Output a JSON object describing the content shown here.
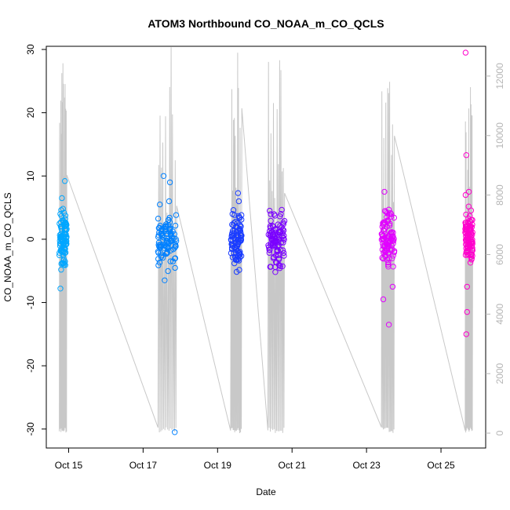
{
  "chart_data": {
    "type": "scatter",
    "title": "ATOM3 Northbound CO_NOAA_m_CO_QCLS",
    "xlabel": "Date",
    "ylabel": "CO_NOAA_m_CO_QCLS",
    "x_tick_labels": [
      "Oct 15",
      "Oct 17",
      "Oct 19",
      "Oct 21",
      "Oct 23",
      "Oct 25"
    ],
    "x_tick_days": [
      15,
      17,
      19,
      21,
      23,
      25
    ],
    "xlim_days": [
      14.4,
      26.2
    ],
    "ylim": [
      -33,
      30.5
    ],
    "y_ticks": [
      -30,
      -20,
      -10,
      0,
      10,
      20,
      30
    ],
    "y2_label_ticks": [
      0,
      2000,
      4000,
      6000,
      8000,
      10000,
      12000
    ],
    "y2lim": [
      -500,
      13000
    ],
    "y2_color": "#b5b5b5",
    "grid": false,
    "point_style": "open-circle",
    "point_colors": [
      "#00a6ff",
      "#0080ff",
      "#1a3cff",
      "#3a00ff",
      "#7a00ff",
      "#e100ff",
      "#ff00cc"
    ],
    "secondary_line": {
      "name": "",
      "color": "#c8c8c8",
      "note_units": "right axis units"
    },
    "flights": [
      {
        "x_range_days": [
          14.75,
          14.95
        ],
        "point_color": "#00a6ff",
        "series": [
          {
            "x": 14.78,
            "y": -7.8
          },
          {
            "x": 14.8,
            "y": 4.6
          },
          {
            "x": 14.82,
            "y": 6.5
          },
          {
            "x": 14.85,
            "y": -3.8
          },
          {
            "x": 14.9,
            "y": 9.2
          },
          {
            "x": 14.88,
            "y": -4.0
          },
          {
            "x": 14.79,
            "y": 2.0
          },
          {
            "x": 14.82,
            "y": 0.5
          },
          {
            "x": 14.86,
            "y": -1.0
          },
          {
            "x": 14.91,
            "y": 1.5
          },
          {
            "x": 14.84,
            "y": 3.0
          },
          {
            "x": 14.87,
            "y": -2.0
          },
          {
            "x": 14.8,
            "y": 0.0
          },
          {
            "x": 14.83,
            "y": -0.5
          },
          {
            "x": 14.89,
            "y": 2.5
          }
        ]
      },
      {
        "x_range_days": [
          17.4,
          17.9
        ],
        "point_color": "#0080ff",
        "series": [
          {
            "x": 17.55,
            "y": 10.0
          },
          {
            "x": 17.72,
            "y": 9.0
          },
          {
            "x": 17.58,
            "y": -6.5
          },
          {
            "x": 17.85,
            "y": -30.5
          },
          {
            "x": 17.45,
            "y": 5.5
          },
          {
            "x": 17.7,
            "y": 6.0
          },
          {
            "x": 17.6,
            "y": 2.0
          },
          {
            "x": 17.65,
            "y": -2.0
          },
          {
            "x": 17.75,
            "y": 1.0
          },
          {
            "x": 17.5,
            "y": -1.0
          },
          {
            "x": 17.8,
            "y": -3.5
          },
          {
            "x": 17.68,
            "y": 3.0
          }
        ]
      },
      {
        "x_range_days": [
          19.35,
          19.65
        ],
        "point_color": "#1a3cff",
        "series": [
          {
            "x": 19.55,
            "y": 7.3
          },
          {
            "x": 19.57,
            "y": 6.0
          },
          {
            "x": 19.4,
            "y": 4.0
          },
          {
            "x": 19.45,
            "y": -3.8
          },
          {
            "x": 19.5,
            "y": 2.0
          },
          {
            "x": 19.6,
            "y": -2.0
          },
          {
            "x": 19.48,
            "y": 0.0
          },
          {
            "x": 19.52,
            "y": -1.0
          }
        ]
      },
      {
        "x_range_days": [
          20.35,
          20.8
        ],
        "point_color": "#7a00ff",
        "series": [
          {
            "x": 20.4,
            "y": 4.5
          },
          {
            "x": 20.7,
            "y": 4.0
          },
          {
            "x": 20.55,
            "y": -5.2
          },
          {
            "x": 20.5,
            "y": 2.0
          },
          {
            "x": 20.6,
            "y": -2.0
          },
          {
            "x": 20.45,
            "y": 0.0
          },
          {
            "x": 20.65,
            "y": -3.0
          },
          {
            "x": 20.75,
            "y": 1.0
          }
        ]
      },
      {
        "x_range_days": [
          23.4,
          23.75
        ],
        "point_color": "#e100ff",
        "series": [
          {
            "x": 23.48,
            "y": 7.5
          },
          {
            "x": 23.45,
            "y": -9.5
          },
          {
            "x": 23.6,
            "y": -13.5
          },
          {
            "x": 23.7,
            "y": -7.5
          },
          {
            "x": 23.55,
            "y": 2.0
          },
          {
            "x": 23.5,
            "y": -2.0
          },
          {
            "x": 23.65,
            "y": 0.0
          },
          {
            "x": 23.58,
            "y": -4.0
          }
        ]
      },
      {
        "x_range_days": [
          25.65,
          25.85
        ],
        "point_color": "#ff00cc",
        "series": [
          {
            "x": 25.66,
            "y": 29.5
          },
          {
            "x": 25.68,
            "y": 13.3
          },
          {
            "x": 25.66,
            "y": 7.0
          },
          {
            "x": 25.75,
            "y": 7.5
          },
          {
            "x": 25.7,
            "y": -7.5
          },
          {
            "x": 25.7,
            "y": -11.5
          },
          {
            "x": 25.68,
            "y": -15.0
          },
          {
            "x": 25.78,
            "y": 2.0
          },
          {
            "x": 25.72,
            "y": 0.0
          },
          {
            "x": 25.8,
            "y": -2.5
          }
        ]
      }
    ]
  }
}
